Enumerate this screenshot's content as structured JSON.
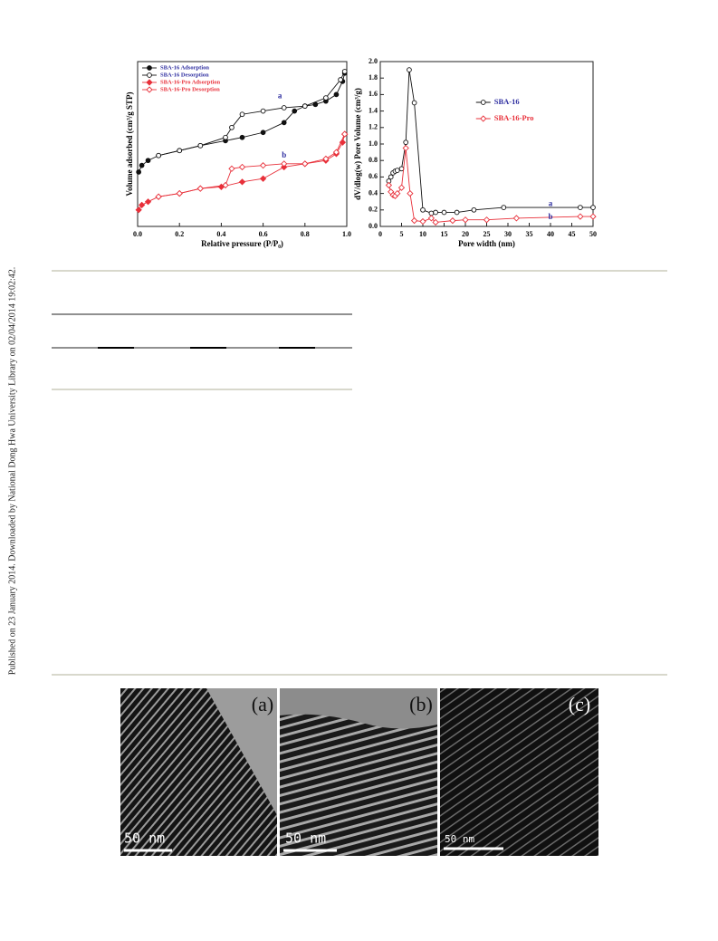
{
  "side_note": "Published on 23 January 2014. Downloaded by National Dong Hwa University Library on 02/04/2014 19:02:42.",
  "chart_data": [
    {
      "type": "line",
      "xlabel": "Relative pressure (P/P₀)",
      "ylabel": "Volume adsorbed (cm³/g STP)",
      "xlim": [
        0,
        1
      ],
      "ylim": [
        0,
        100
      ],
      "xticks": [
        {
          "value": 0,
          "label": "0.0"
        },
        0.2,
        0.4,
        0.6,
        0.8,
        {
          "value": 1,
          "label": "1.0"
        }
      ],
      "legend": "upper left",
      "series": [
        {
          "name": "SBA-16 Adsorption",
          "color": "#111111",
          "label_color": "#2e2ea0",
          "marker": "circle",
          "filled": true,
          "x": [
            0.005,
            0.02,
            0.05,
            0.1,
            0.2,
            0.3,
            0.42,
            0.5,
            0.6,
            0.7,
            0.75,
            0.8,
            0.85,
            0.9,
            0.95,
            0.98,
            0.99
          ],
          "values": [
            33,
            37,
            40,
            43,
            46,
            49,
            52,
            54,
            57,
            63,
            70,
            73,
            74,
            76,
            80,
            88,
            93
          ]
        },
        {
          "name": "SBA-16 Desorption",
          "color": "#111111",
          "label_color": "#2e2ea0",
          "marker": "circle",
          "filled": false,
          "x": [
            0.99,
            0.97,
            0.9,
            0.8,
            0.7,
            0.6,
            0.5,
            0.45,
            0.42,
            0.3,
            0.2,
            0.1
          ],
          "values": [
            94,
            89,
            78,
            73,
            72,
            70,
            68,
            60,
            54,
            49,
            46,
            43
          ]
        },
        {
          "name": "SBA-16-Pro Adsorption",
          "color": "#e8303a",
          "label_color": "#e8303a",
          "marker": "diamond",
          "filled": true,
          "x": [
            0.005,
            0.02,
            0.05,
            0.1,
            0.2,
            0.3,
            0.4,
            0.5,
            0.6,
            0.7,
            0.8,
            0.9,
            0.95,
            0.98,
            0.99
          ],
          "values": [
            10,
            13,
            15,
            18,
            20,
            23,
            24,
            27,
            29,
            36,
            38,
            40,
            44,
            51,
            56
          ]
        },
        {
          "name": "SBA-16-Pro Desorption",
          "color": "#e8303a",
          "label_color": "#e8303a",
          "marker": "diamond",
          "filled": false,
          "x": [
            0.99,
            0.95,
            0.9,
            0.8,
            0.7,
            0.6,
            0.5,
            0.45,
            0.42,
            0.3,
            0.2,
            0.1
          ],
          "values": [
            56,
            45,
            41,
            38,
            38,
            37,
            36,
            35,
            25,
            23,
            20,
            18
          ]
        }
      ],
      "annotations": [
        {
          "text": "a",
          "x": 0.68,
          "y": 79
        },
        {
          "text": "b",
          "x": 0.7,
          "y": 43
        }
      ]
    },
    {
      "type": "line",
      "xlabel": "Pore width (nm)",
      "ylabel": "dV/dlog(w) Pore Volume (cm³/g)",
      "xlim": [
        0,
        50
      ],
      "ylim": [
        0,
        2
      ],
      "xticks": [
        0,
        5,
        10,
        15,
        20,
        25,
        30,
        35,
        40,
        45,
        50
      ],
      "yticks": [
        {
          "value": 0,
          "label": "0.0"
        },
        0.2,
        0.4,
        0.6,
        0.8,
        {
          "value": 1,
          "label": "1.0"
        },
        1.2,
        1.4,
        1.6,
        1.8,
        {
          "value": 2,
          "label": "2.0"
        }
      ],
      "legend": "upper right",
      "series": [
        {
          "name": "SBA-16",
          "color": "#111111",
          "label_color": "#2e2ea0",
          "marker": "circle",
          "filled": false,
          "x": [
            2,
            2.5,
            3,
            3.5,
            4,
            5,
            6,
            6.8,
            8,
            10,
            12,
            13,
            15,
            18,
            22,
            29,
            47,
            50
          ],
          "values": [
            0.55,
            0.6,
            0.65,
            0.67,
            0.68,
            0.7,
            1.02,
            1.9,
            1.5,
            0.2,
            0.16,
            0.17,
            0.17,
            0.17,
            0.2,
            0.23,
            0.23,
            0.23
          ]
        },
        {
          "name": "SBA-16-Pro",
          "color": "#e8303a",
          "label_color": "#e8303a",
          "marker": "diamond",
          "filled": false,
          "x": [
            2,
            2.5,
            3,
            3.5,
            4,
            5,
            6,
            7,
            8,
            10,
            12,
            13,
            17,
            20,
            25,
            32,
            47,
            50
          ],
          "values": [
            0.5,
            0.42,
            0.38,
            0.37,
            0.4,
            0.47,
            0.95,
            0.4,
            0.07,
            0.06,
            0.1,
            0.05,
            0.07,
            0.08,
            0.08,
            0.1,
            0.12,
            0.12
          ]
        }
      ],
      "annotations": [
        {
          "text": "a",
          "x": 40,
          "y": 0.27
        },
        {
          "text": "b",
          "x": 40,
          "y": 0.11
        }
      ]
    }
  ],
  "figure": {
    "panels": [
      {
        "label": "(a)",
        "scale": "50 nm"
      },
      {
        "label": "(b)",
        "scale": "50 nm"
      },
      {
        "label": "(c)",
        "scale": "50 nm"
      }
    ]
  }
}
